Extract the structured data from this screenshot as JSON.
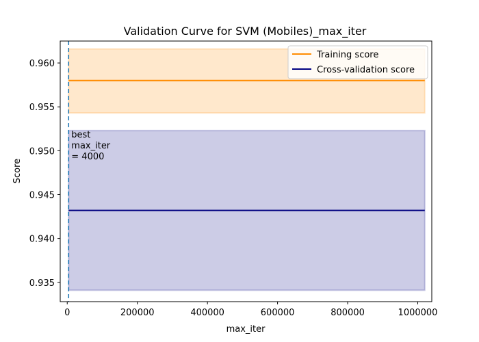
{
  "chart_data": {
    "type": "line",
    "title": "Validation Curve for SVM (Mobiles)_max_iter",
    "xlabel": "max_iter",
    "ylabel": "Score",
    "xlim": [
      -20000,
      1040000
    ],
    "ylim": [
      0.9328,
      0.9625
    ],
    "xticks": [
      0,
      200000,
      400000,
      600000,
      800000,
      1000000
    ],
    "xtick_labels": [
      "0",
      "200000",
      "400000",
      "600000",
      "800000",
      "1000000"
    ],
    "yticks": [
      0.935,
      0.94,
      0.945,
      0.95,
      0.955,
      0.96
    ],
    "ytick_labels": [
      "0.935",
      "0.940",
      "0.945",
      "0.950",
      "0.955",
      "0.960"
    ],
    "x": [
      4000,
      1020000
    ],
    "series": [
      {
        "name": "Training score",
        "color": "#ff8c00",
        "values": [
          0.958,
          0.958
        ],
        "band_lower": [
          0.9543,
          0.9543
        ],
        "band_upper": [
          0.9616,
          0.9616
        ]
      },
      {
        "name": "Cross-validation score",
        "color": "#000080",
        "values": [
          0.9432,
          0.9432
        ],
        "band_lower": [
          0.9341,
          0.9341
        ],
        "band_upper": [
          0.9523,
          0.9523
        ]
      }
    ],
    "vline": {
      "x": 4000,
      "color": "#1f77b4",
      "style": "dashed"
    },
    "annotation": {
      "lines": [
        "best",
        "max_iter",
        "= 4000"
      ],
      "x": 4000,
      "y": 0.9515
    },
    "legend_position": "upper-right",
    "grid": false
  }
}
